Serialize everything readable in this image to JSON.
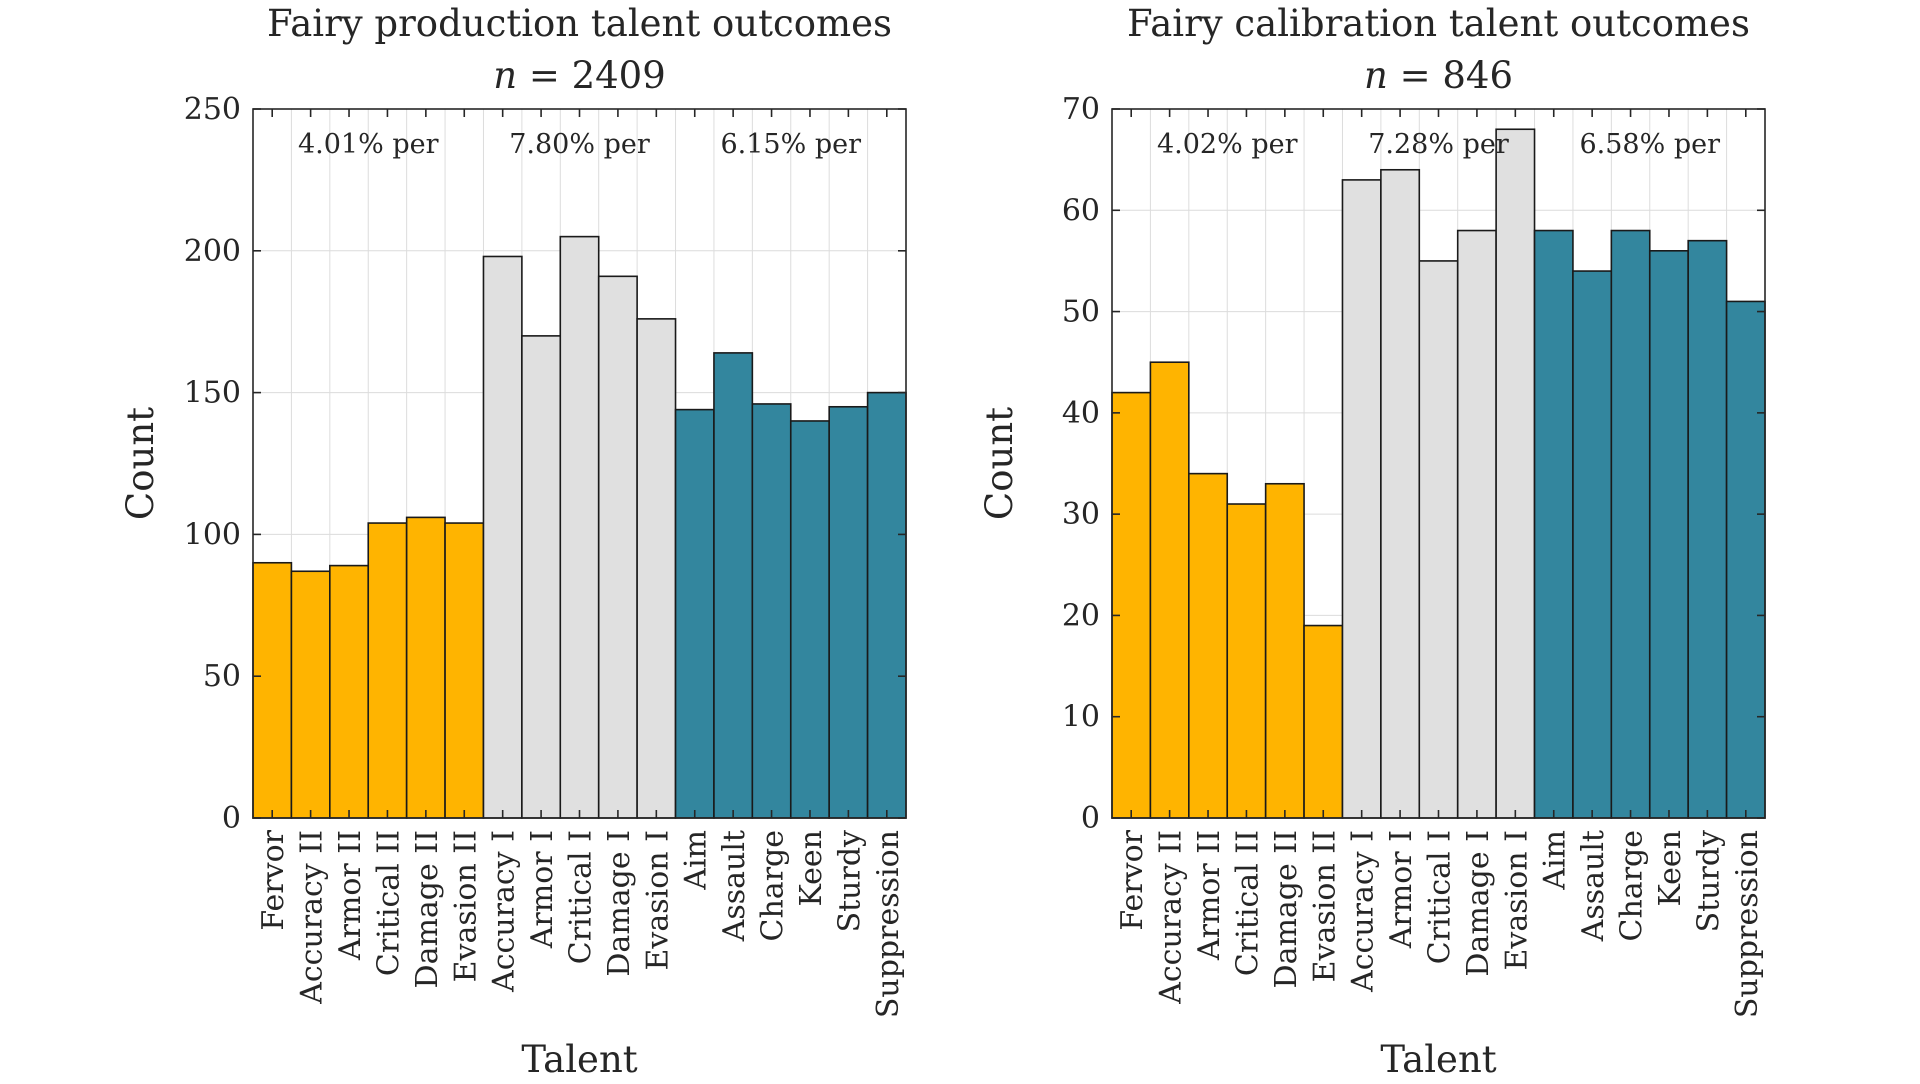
{
  "chart_data": [
    {
      "type": "bar",
      "title": "Fairy production talent outcomes",
      "subtitle": "n = 2409",
      "xlabel": "Talent",
      "ylabel": "Count",
      "ylim": [
        0,
        250
      ],
      "yticks": [
        0,
        50,
        100,
        150,
        200,
        250
      ],
      "grid": true,
      "categories": [
        "Fervor",
        "Accuracy II",
        "Armor II",
        "Critical II",
        "Damage II",
        "Evasion II",
        "Accuracy I",
        "Armor I",
        "Critical I",
        "Damage I",
        "Evasion I",
        "Aim",
        "Assault",
        "Charge",
        "Keen",
        "Sturdy",
        "Suppression"
      ],
      "values": [
        90,
        87,
        89,
        104,
        106,
        104,
        198,
        170,
        205,
        191,
        176,
        144,
        164,
        146,
        140,
        145,
        150
      ],
      "groups": [
        {
          "start": 0,
          "end": 5,
          "color": "#FFB400",
          "label": "4.01% per"
        },
        {
          "start": 6,
          "end": 10,
          "color": "#E0E0E0",
          "label": "7.80% per"
        },
        {
          "start": 11,
          "end": 16,
          "color": "#33869E",
          "label": "6.15% per"
        }
      ]
    },
    {
      "type": "bar",
      "title": "Fairy calibration talent outcomes",
      "subtitle": "n = 846",
      "xlabel": "Talent",
      "ylabel": "Count",
      "ylim": [
        0,
        70
      ],
      "yticks": [
        0,
        10,
        20,
        30,
        40,
        50,
        60,
        70
      ],
      "grid": true,
      "categories": [
        "Fervor",
        "Accuracy II",
        "Armor II",
        "Critical II",
        "Damage II",
        "Evasion II",
        "Accuracy I",
        "Armor I",
        "Critical I",
        "Damage I",
        "Evasion I",
        "Aim",
        "Assault",
        "Charge",
        "Keen",
        "Sturdy",
        "Suppression"
      ],
      "values": [
        42,
        45,
        34,
        31,
        33,
        19,
        63,
        64,
        55,
        58,
        68,
        58,
        54,
        58,
        56,
        57,
        51
      ],
      "groups": [
        {
          "start": 0,
          "end": 5,
          "color": "#FFB400",
          "label": "4.02% per"
        },
        {
          "start": 6,
          "end": 10,
          "color": "#E0E0E0",
          "label": "7.28% per"
        },
        {
          "start": 11,
          "end": 16,
          "color": "#33869E",
          "label": "6.58% per"
        }
      ]
    }
  ]
}
